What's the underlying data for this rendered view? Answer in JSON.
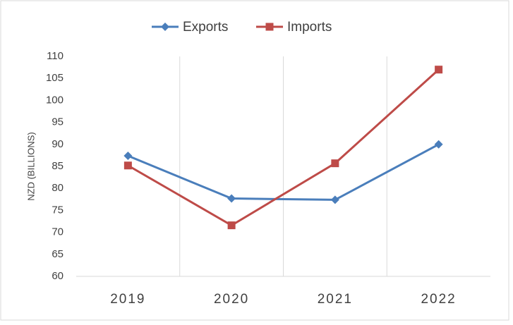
{
  "chart_data": {
    "type": "line",
    "y_label": "NZD (BILLIONS)",
    "categories": [
      "2019",
      "2020",
      "2021",
      "2022"
    ],
    "series": [
      {
        "name": "Exports",
        "color": "#4a7ebb",
        "marker": "diamond",
        "values": [
          87.4,
          77.7,
          77.4,
          90
        ]
      },
      {
        "name": "Imports",
        "color": "#be4b48",
        "marker": "square",
        "values": [
          85.2,
          71.6,
          85.7,
          107
        ]
      }
    ],
    "ylim": [
      60,
      110
    ],
    "yticks": [
      60,
      65,
      70,
      75,
      80,
      85,
      90,
      95,
      100,
      105,
      110
    ],
    "grid": "x",
    "legend": "top"
  }
}
